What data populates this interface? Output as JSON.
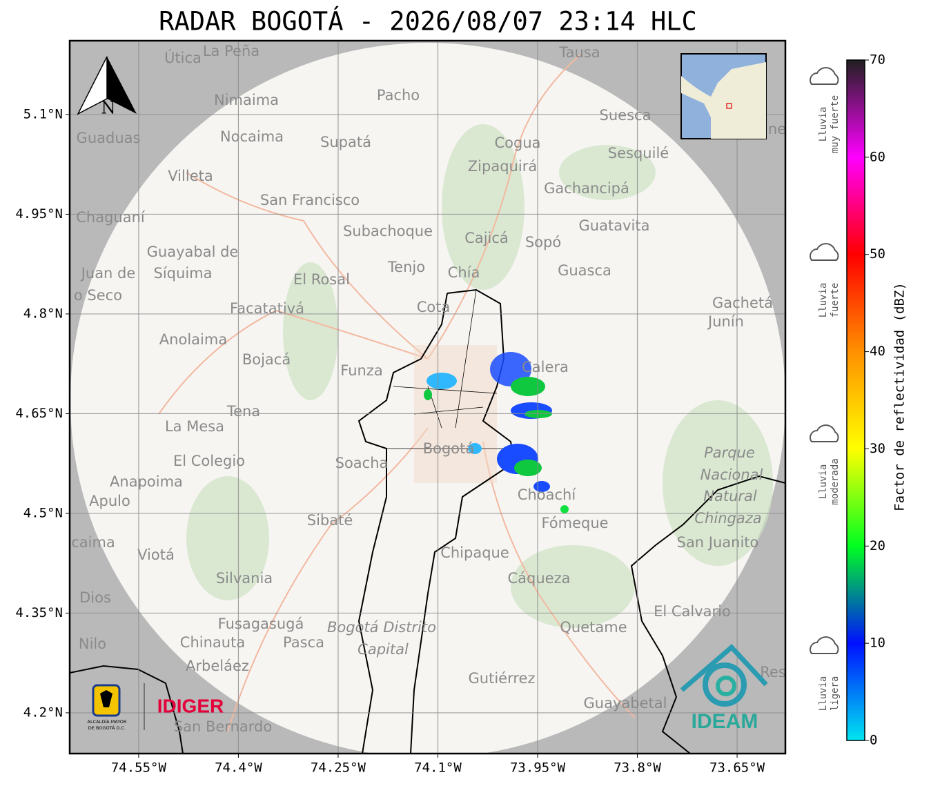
{
  "title": "RADAR BOGOTÁ - 2026/08/07 23:14 HLC",
  "north": "N",
  "map": {
    "xlim": [
      -74.6537,
      -73.5774
    ],
    "ylim": [
      4.1387,
      5.211
    ],
    "grid": true,
    "xticks": [
      {
        "value": -74.55,
        "label": "74.55°W"
      },
      {
        "value": -74.4,
        "label": "74.4°W"
      },
      {
        "value": -74.25,
        "label": "74.25°W"
      },
      {
        "value": -74.1,
        "label": "74.1°W"
      },
      {
        "value": -73.95,
        "label": "73.95°W"
      },
      {
        "value": -73.8,
        "label": "73.8°W"
      },
      {
        "value": -73.65,
        "label": "73.65°W"
      }
    ],
    "yticks": [
      {
        "value": 5.1,
        "label": "5.1°N"
      },
      {
        "value": 4.95,
        "label": "4.95°N"
      },
      {
        "value": 4.8,
        "label": "4.8°N"
      },
      {
        "value": 4.65,
        "label": "4.65°N"
      },
      {
        "value": 4.5,
        "label": "4.5°N"
      },
      {
        "value": 4.35,
        "label": "4.35°N"
      },
      {
        "value": 4.2,
        "label": "4.2°N"
      }
    ],
    "places": [
      "Útica",
      "La Peña",
      "Tausa",
      "Pacho",
      "Nimaima",
      "Guaduas",
      "Nocaima",
      "Supatá",
      "Cogua",
      "Suesca",
      "Sesquilé",
      "Zipaquirá",
      "Villeta",
      "Gachancipá",
      "San Francisco",
      "Chaguaní",
      "Guatavita",
      "Subachoque",
      "Cajicá",
      "Sopó",
      "Guayabal de",
      "Síquima",
      "Juan de",
      "o Seco",
      "Tenjo",
      "Chía",
      "Guasca",
      "El Rosal",
      "Facatativá",
      "Cota",
      "Gachetá",
      "Junín",
      "Anolaima",
      "Bojacá",
      "Calera",
      "Funza",
      "Tena",
      "La Mesa",
      "Bogotá",
      "Soacha",
      "El Colegio",
      "Anapoima",
      "Apulo",
      "Choachí",
      "Sibaté",
      "Fómeque",
      "caima",
      "Viotá",
      "Chipaque",
      "San Juanito",
      "Silvania",
      "Cáqueza",
      "Dios",
      "El Calvario",
      "Fusagasugá",
      "Quetame",
      "Chinauta",
      "Pasca",
      "Nilo",
      "Arbeláez",
      "Gutiérrez",
      "Guayabetal",
      "San Bernardo",
      "Res",
      "ne",
      "Parque",
      "Nacional",
      "Natural",
      "Chingaza",
      "Bogotá Distrito",
      "Capital"
    ]
  },
  "colorbar": {
    "label": "Factor de reflectividad (dBZ)",
    "lim": [
      0,
      70
    ],
    "ticks": [
      0,
      10,
      20,
      30,
      40,
      50,
      60,
      70
    ],
    "stops": [
      "#00e5f0",
      "#0010ff",
      "#00ff20",
      "#ffff00",
      "#ff9000",
      "#ff0000",
      "#ff00ff",
      "#202020"
    ]
  },
  "rain_levels": [
    [
      "Lluvia",
      "muy fuerte"
    ],
    [
      "Lluvia",
      "fuerte"
    ],
    [
      "Lluvia",
      "moderada"
    ],
    [
      "Lluvia",
      "ligera"
    ]
  ],
  "logos": {
    "alcaldia": [
      "ALCALDÍA MAYOR",
      "DE BOGOTÁ D.C."
    ],
    "idiger": "IDIGER",
    "ideam": "IDEAM"
  }
}
